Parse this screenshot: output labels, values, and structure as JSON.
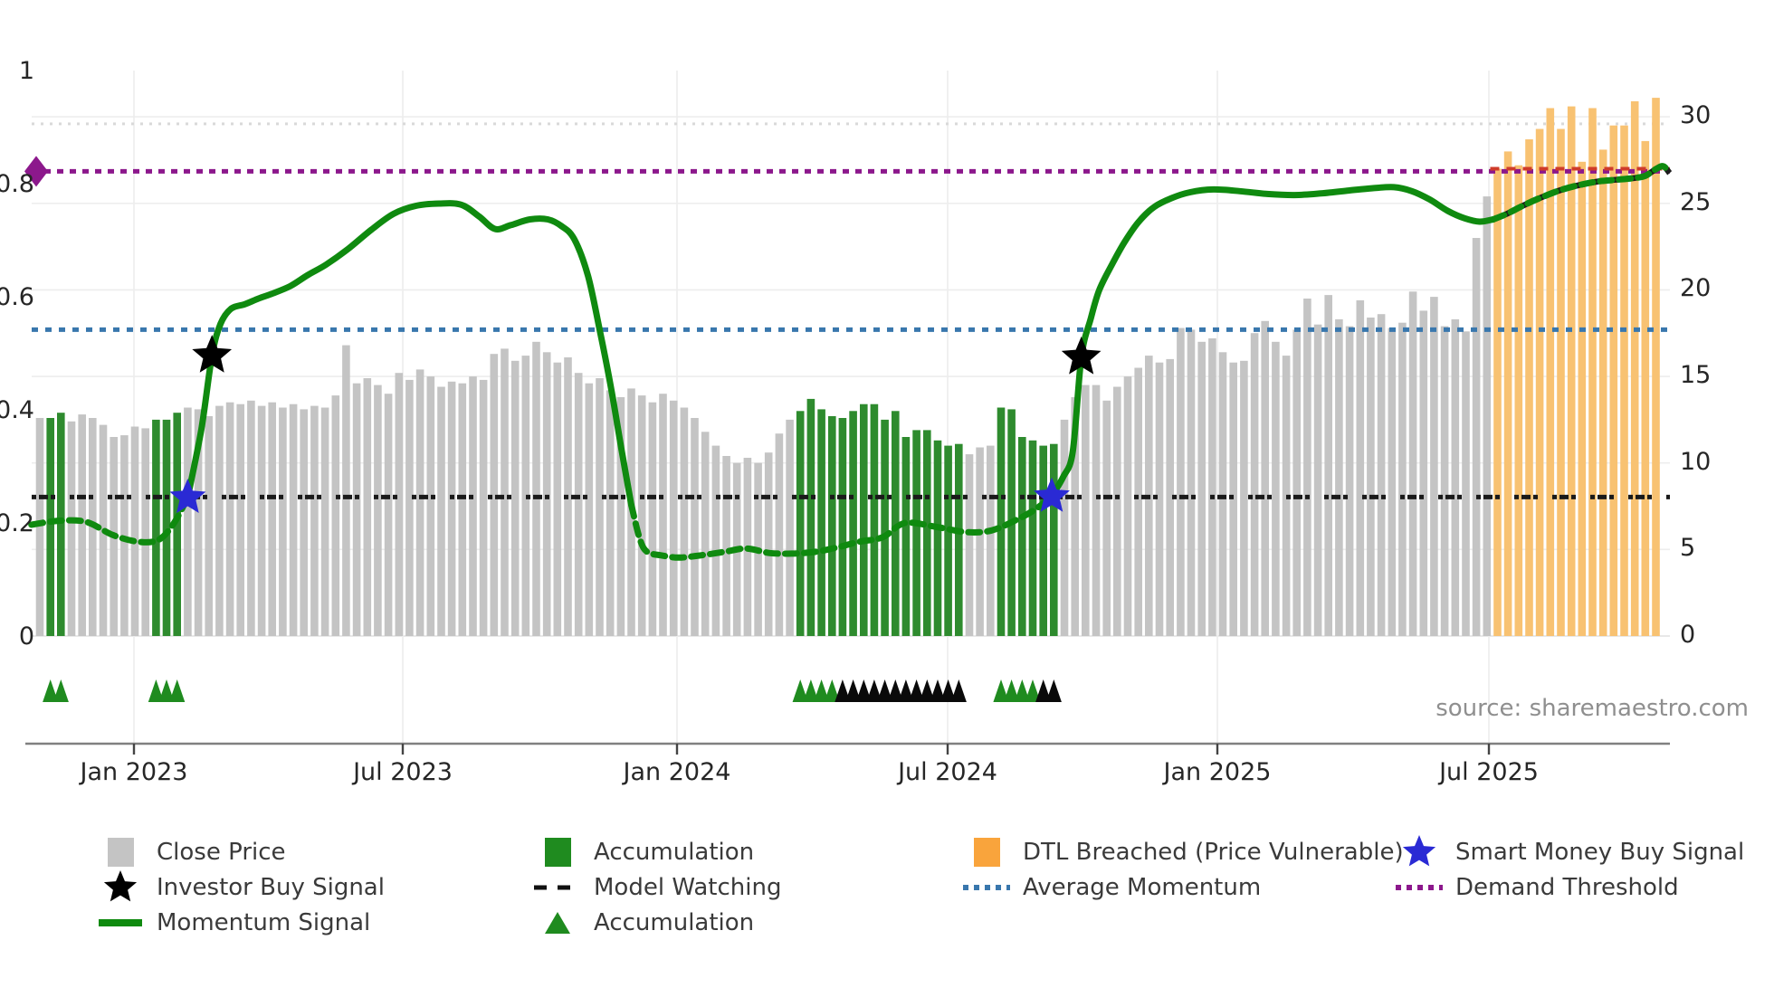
{
  "source_text": "source: sharemaestro.com",
  "colors": {
    "close_price_bar": "#c4c4c4",
    "accumulation_bar": "#2e8b2e",
    "accumulation_legend": "#1f8b1f",
    "dtl_breached_bar": "#f8c272",
    "dtl_breached_legend": "#f9a43c",
    "momentum_line": "#0f8a0f",
    "average_momentum_line": "#3977ad",
    "demand_threshold_line": "#8c188c",
    "model_watching_line": "#1a1a1a",
    "smart_money_star": "#2a2ad4",
    "investor_star": "#000000",
    "dtl_price_line": "#cf3b2a",
    "faint_upper_line": "#d9d9d9",
    "grid": "#ededed",
    "axis_line": "#808080",
    "triangle_green": "#1f8b1f",
    "triangle_black": "#0a0a0a"
  },
  "axes": {
    "left_tick_labels": [
      "0",
      "0.2",
      "0.4",
      "0.6",
      "0.8",
      "1"
    ],
    "left_tick_values": [
      0,
      0.2,
      0.4,
      0.6,
      0.8,
      1
    ],
    "right_tick_labels": [
      "0",
      "5",
      "10",
      "15",
      "20",
      "25",
      "30"
    ],
    "right_tick_values": [
      0,
      5,
      10,
      15,
      20,
      25,
      30
    ],
    "x_tick_labels": [
      "Jan 2023",
      "Jul 2023",
      "Jan 2024",
      "Jul 2024",
      "Jan 2025",
      "Jul 2025"
    ]
  },
  "legend": {
    "items": [
      {
        "label": "Close Price",
        "marker": "square",
        "color": "#c4c4c4",
        "col": 0,
        "row": 0
      },
      {
        "label": "Investor Buy Signal",
        "marker": "star",
        "color": "#000000",
        "col": 0,
        "row": 1
      },
      {
        "label": "Momentum Signal",
        "marker": "line",
        "color": "#0f8a0f",
        "col": 0,
        "row": 2
      },
      {
        "label": "Accumulation",
        "marker": "square",
        "color": "#1f8b1f",
        "col": 1,
        "row": 0
      },
      {
        "label": "Model Watching",
        "marker": "dash",
        "color": "#111111",
        "col": 1,
        "row": 1
      },
      {
        "label": "Accumulation",
        "marker": "triangle",
        "color": "#1f8b1f",
        "col": 1,
        "row": 2
      },
      {
        "label": "DTL Breached (Price Vulnerable)",
        "marker": "square",
        "color": "#f9a43c",
        "col": 2,
        "row": 0
      },
      {
        "label": "Average Momentum",
        "marker": "dots",
        "color": "#3977ad",
        "col": 2,
        "row": 1
      },
      {
        "label": "Smart Money Buy Signal",
        "marker": "star",
        "color": "#2a2ad4",
        "col": 3,
        "row": 0
      },
      {
        "label": "Demand Threshold",
        "marker": "dots",
        "color": "#8c188c",
        "col": 3,
        "row": 1
      }
    ]
  },
  "chart_data": {
    "type": "bar",
    "title": "",
    "x_axis": {
      "tick_labels": [
        "Jan 2023",
        "Jul 2023",
        "Jan 2024",
        "Jul 2024",
        "Jan 2025",
        "Jul 2025"
      ],
      "unit": "weekly bars, ~Oct 2022 to ~Oct 2025"
    },
    "y_left_axis": {
      "ticks": [
        0,
        0.2,
        0.4,
        0.6,
        0.8,
        1
      ],
      "range": [
        0,
        1.07
      ],
      "series": "momentum / thresholds"
    },
    "y_right_axis": {
      "ticks": [
        0,
        5,
        10,
        15,
        20,
        25,
        30
      ],
      "range": [
        0,
        32.7
      ],
      "series": "price"
    },
    "close_price": {
      "name": "Close Price",
      "axis": "right",
      "values": [
        12.6,
        12.6,
        12.9,
        12.4,
        12.8,
        12.6,
        12.2,
        11.5,
        11.6,
        12.1,
        12.0,
        12.5,
        12.5,
        12.9,
        13.2,
        13.1,
        12.7,
        13.3,
        13.5,
        13.4,
        13.6,
        13.3,
        13.5,
        13.2,
        13.4,
        13.1,
        13.3,
        13.2,
        13.9,
        16.8,
        14.6,
        14.9,
        14.5,
        14.0,
        15.2,
        14.8,
        15.4,
        15.0,
        14.4,
        14.7,
        14.6,
        15.0,
        14.8,
        16.3,
        16.6,
        15.9,
        16.2,
        17.0,
        16.4,
        15.8,
        16.1,
        15.2,
        14.6,
        14.9,
        14.2,
        13.8,
        14.3,
        13.9,
        13.5,
        14.0,
        13.6,
        13.2,
        12.6,
        11.8,
        11.0,
        10.4,
        10.0,
        10.3,
        10.0,
        10.6,
        11.7,
        12.5,
        13.0,
        13.7,
        13.1,
        12.7,
        12.6,
        13.0,
        13.4,
        13.4,
        12.5,
        13.0,
        11.5,
        11.9,
        11.9,
        11.3,
        11.0,
        11.1,
        10.5,
        10.9,
        11.0,
        13.2,
        13.1,
        11.5,
        11.3,
        11.0,
        11.1,
        12.5,
        13.8,
        14.5,
        14.5,
        13.6,
        14.4,
        15.0,
        15.5,
        16.2,
        15.8,
        16.0,
        17.8,
        17.7,
        17.0,
        17.2,
        16.4,
        15.8,
        15.9,
        17.5,
        18.2,
        17.0,
        16.2,
        17.7,
        19.5,
        18.0,
        19.7,
        18.3,
        17.9,
        19.4,
        18.4,
        18.6,
        17.8,
        18.1,
        19.9,
        18.8,
        19.6,
        17.9,
        18.3,
        17.6,
        23.0,
        25.4,
        27.0,
        28.0,
        27.2,
        28.7,
        29.3,
        30.5,
        29.3,
        30.6,
        27.4,
        30.5,
        28.1,
        29.5,
        29.5,
        30.9,
        28.6,
        31.1
      ]
    },
    "bar_state_segments": {
      "accumulation_bar_ranges": [
        [
          1,
          2
        ],
        [
          11,
          13
        ],
        [
          72,
          87
        ],
        [
          91,
          96
        ]
      ],
      "dtl_breached_bar_range": [
        138,
        153
      ]
    },
    "momentum_signal": {
      "name": "Momentum Signal",
      "axis": "left",
      "points": [
        [
          -0.8,
          0.2
        ],
        [
          1.8,
          0.207
        ],
        [
          4.4,
          0.205
        ],
        [
          6.9,
          0.182
        ],
        [
          9.3,
          0.17
        ],
        [
          11.2,
          0.173
        ],
        [
          12.6,
          0.2
        ],
        [
          14.0,
          0.248
        ],
        [
          15.3,
          0.37
        ],
        [
          16.3,
          0.499
        ],
        [
          17.1,
          0.555
        ],
        [
          18.1,
          0.582
        ],
        [
          19.4,
          0.59
        ],
        [
          20.7,
          0.6
        ],
        [
          21.9,
          0.608
        ],
        [
          23.7,
          0.622
        ],
        [
          25.4,
          0.642
        ],
        [
          27.1,
          0.66
        ],
        [
          29.2,
          0.688
        ],
        [
          31.4,
          0.722
        ],
        [
          33.5,
          0.75
        ],
        [
          35.6,
          0.764
        ],
        [
          37.8,
          0.768
        ],
        [
          39.9,
          0.766
        ],
        [
          41.6,
          0.745
        ],
        [
          43.1,
          0.723
        ],
        [
          44.6,
          0.73
        ],
        [
          46.4,
          0.74
        ],
        [
          48.1,
          0.74
        ],
        [
          49.4,
          0.728
        ],
        [
          50.6,
          0.705
        ],
        [
          51.9,
          0.64
        ],
        [
          53.0,
          0.545
        ],
        [
          54.1,
          0.44
        ],
        [
          55.1,
          0.33
        ],
        [
          56.0,
          0.235
        ],
        [
          56.8,
          0.175
        ],
        [
          57.5,
          0.152
        ],
        [
          58.8,
          0.146
        ],
        [
          60.5,
          0.142
        ],
        [
          62.6,
          0.146
        ],
        [
          64.8,
          0.152
        ],
        [
          66.9,
          0.158
        ],
        [
          69.1,
          0.15
        ],
        [
          71.2,
          0.149
        ],
        [
          73.4,
          0.152
        ],
        [
          75.5,
          0.16
        ],
        [
          77.6,
          0.17
        ],
        [
          79.8,
          0.178
        ],
        [
          81.9,
          0.203
        ],
        [
          84.9,
          0.196
        ],
        [
          87.7,
          0.187
        ],
        [
          90.1,
          0.19
        ],
        [
          92.6,
          0.21
        ],
        [
          94.3,
          0.228
        ],
        [
          95.8,
          0.25
        ],
        [
          96.9,
          0.285
        ],
        [
          97.8,
          0.33
        ],
        [
          98.6,
          0.496
        ],
        [
          99.5,
          0.565
        ],
        [
          100.3,
          0.615
        ],
        [
          101.5,
          0.66
        ],
        [
          102.7,
          0.7
        ],
        [
          104.0,
          0.735
        ],
        [
          105.5,
          0.762
        ],
        [
          107.2,
          0.778
        ],
        [
          108.9,
          0.788
        ],
        [
          111.1,
          0.793
        ],
        [
          113.6,
          0.79
        ],
        [
          116.2,
          0.785
        ],
        [
          118.8,
          0.783
        ],
        [
          121.3,
          0.786
        ],
        [
          123.9,
          0.791
        ],
        [
          126.1,
          0.795
        ],
        [
          128.2,
          0.797
        ],
        [
          129.9,
          0.79
        ],
        [
          131.6,
          0.775
        ],
        [
          133.3,
          0.755
        ],
        [
          134.9,
          0.742
        ],
        [
          136.3,
          0.736
        ],
        [
          137.6,
          0.74
        ],
        [
          138.9,
          0.75
        ],
        [
          140.6,
          0.766
        ],
        [
          142.3,
          0.78
        ],
        [
          144.0,
          0.792
        ],
        [
          145.8,
          0.801
        ],
        [
          147.5,
          0.807
        ],
        [
          149.2,
          0.81
        ],
        [
          150.9,
          0.813
        ],
        [
          152.0,
          0.817
        ],
        [
          153.0,
          0.829
        ],
        [
          153.7,
          0.834
        ],
        [
          154.3,
          0.822
        ]
      ],
      "style_boundaries": [
        14.0,
        56.0,
        95.8,
        137.6
      ],
      "segment_styles": [
        "dashed",
        "solid",
        "dashed",
        "solid",
        "dashed-over-dark"
      ]
    },
    "reference_lines": {
      "demand_threshold": 0.825,
      "average_momentum": 0.545,
      "model_watching": 0.249,
      "upper_faint_dotted": 0.909,
      "dtl_price_line": {
        "value": 27,
        "from_bar_index": 138,
        "axis": "right"
      }
    },
    "markers": {
      "investor_buy_signals": [
        {
          "index": 16.3,
          "momentum": 0.499
        },
        {
          "index": 98.6,
          "momentum": 0.496
        }
      ],
      "smart_money_buy_signals": [
        {
          "index": 14.0,
          "momentum": 0.248
        },
        {
          "index": 95.8,
          "momentum": 0.25
        }
      ],
      "demand_threshold_marker": {
        "position": "left-edge",
        "value": 0.825
      },
      "accumulation_triangles": [
        1,
        2,
        11,
        12,
        13,
        72,
        73,
        74,
        75,
        91,
        92,
        93,
        94
      ],
      "watch_triangles": [
        76,
        77,
        78,
        79,
        80,
        81,
        82,
        83,
        84,
        85,
        86,
        87,
        95,
        96
      ]
    }
  }
}
